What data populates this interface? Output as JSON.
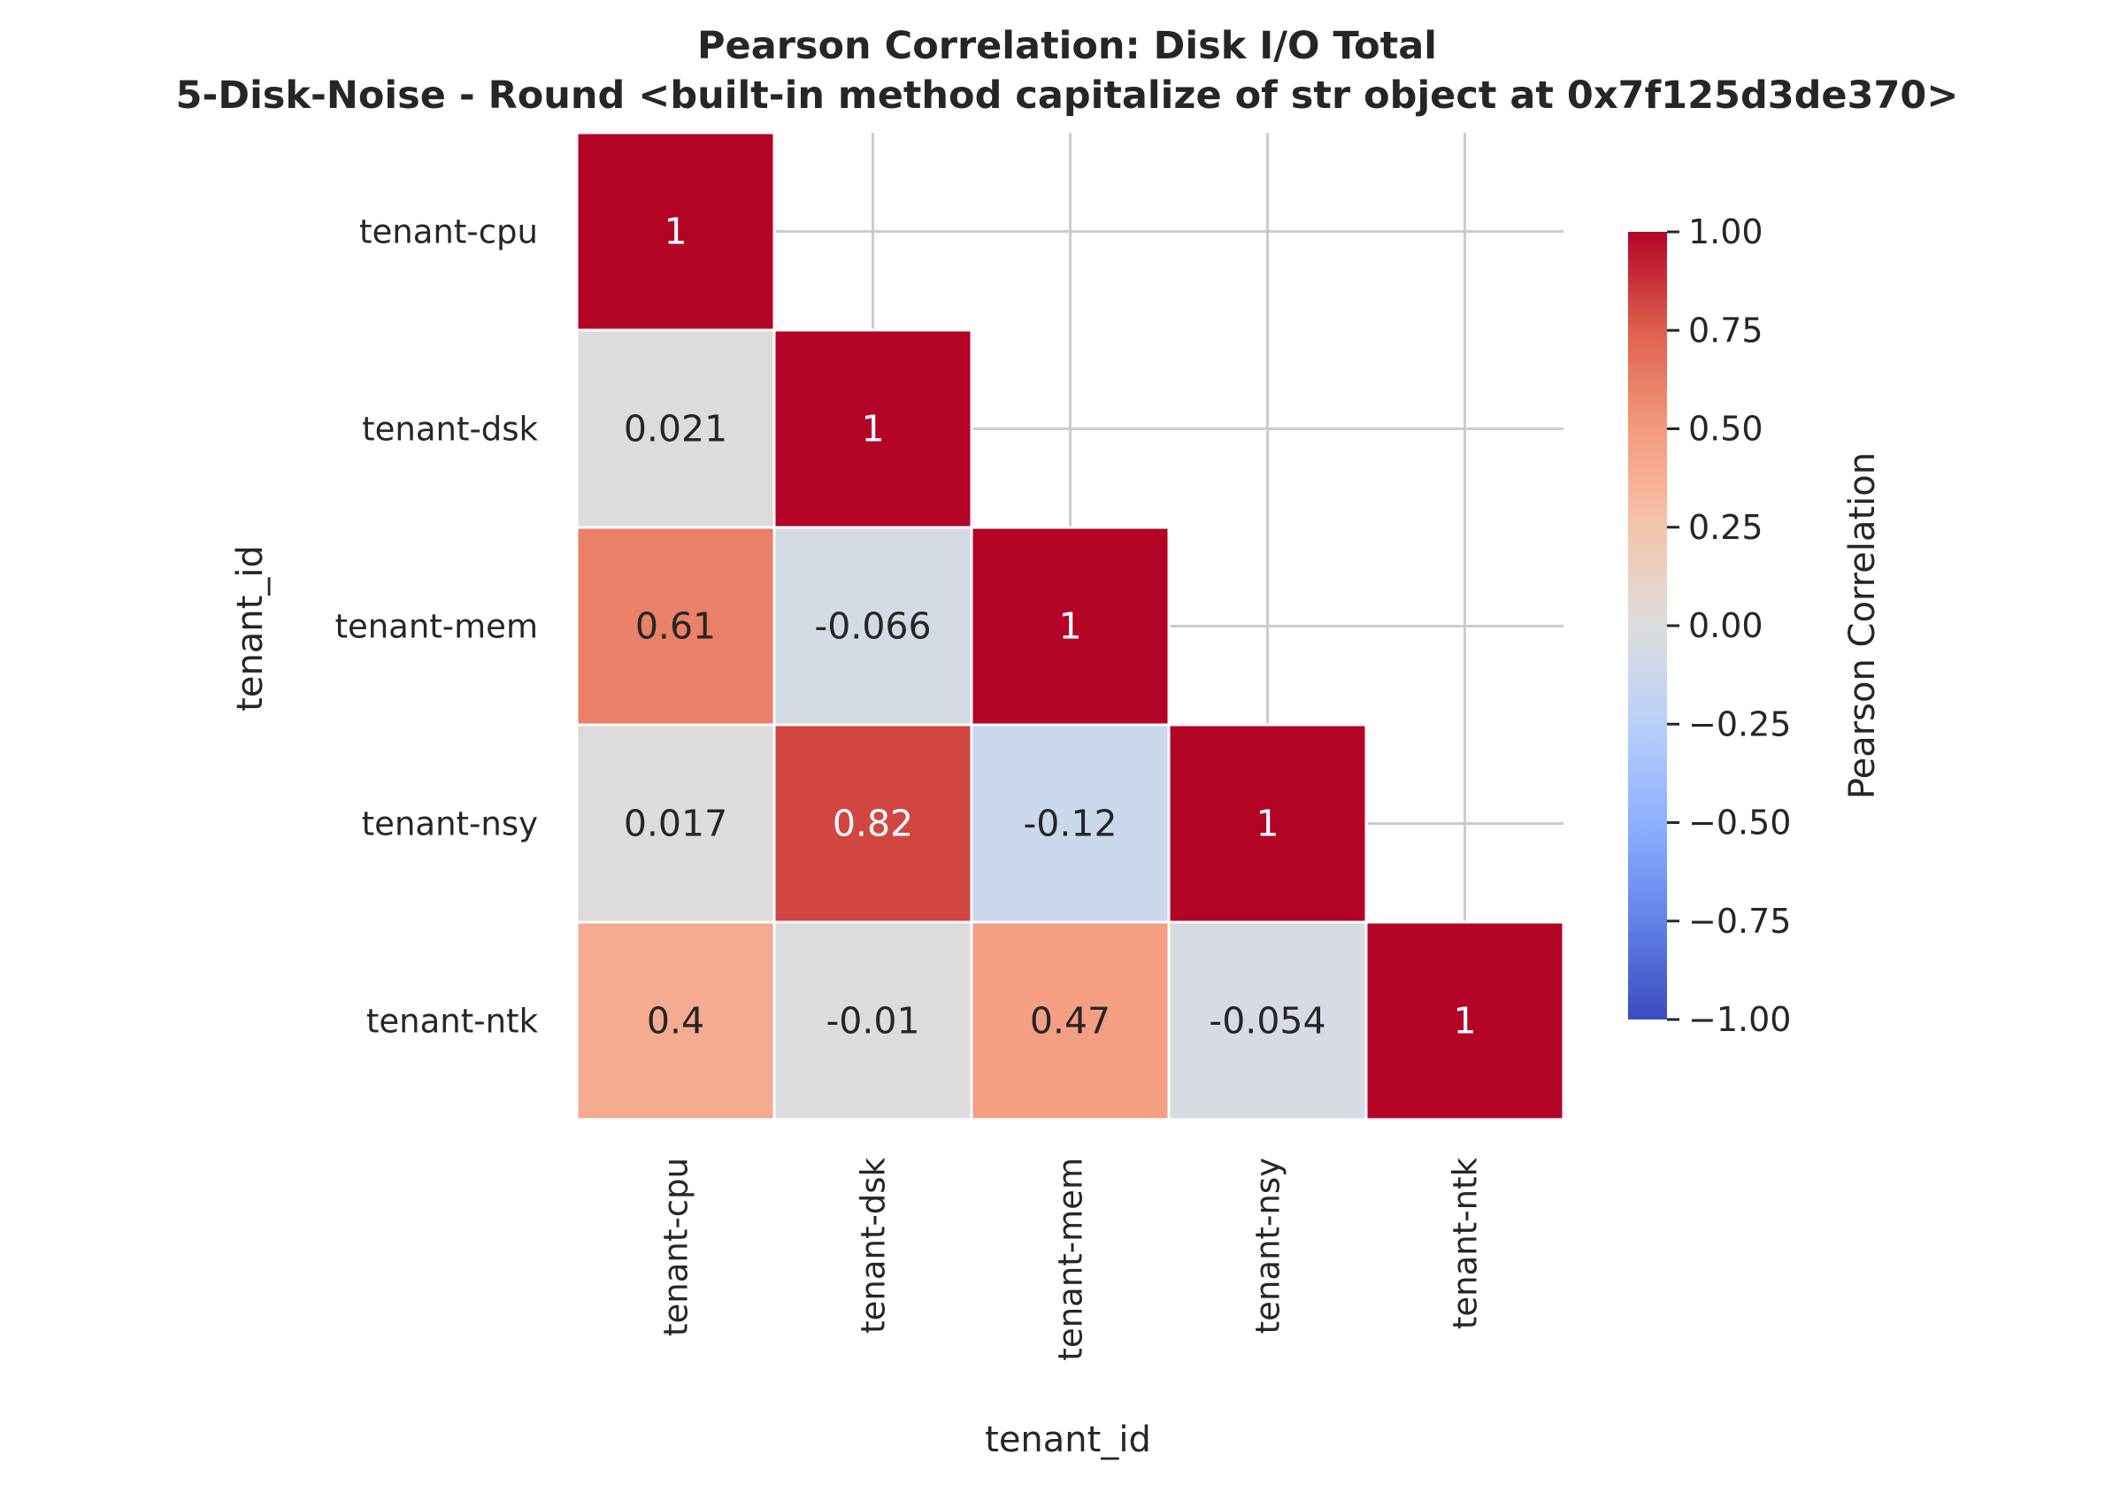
{
  "chart_data": {
    "type": "heatmap",
    "title_lines": [
      "Pearson Correlation: Disk I/O Total",
      "5-Disk-Noise - Round <built-in method capitalize of str object at 0x7f125d3de370>"
    ],
    "xlabel": "tenant_id",
    "ylabel": "tenant_id",
    "x_categories": [
      "tenant-cpu",
      "tenant-dsk",
      "tenant-mem",
      "tenant-nsy",
      "tenant-ntk"
    ],
    "y_categories": [
      "tenant-cpu",
      "tenant-dsk",
      "tenant-mem",
      "tenant-nsy",
      "tenant-ntk"
    ],
    "mask": "upper-triangle",
    "values": [
      [
        1,
        null,
        null,
        null,
        null
      ],
      [
        0.021,
        1,
        null,
        null,
        null
      ],
      [
        0.61,
        -0.066,
        1,
        null,
        null
      ],
      [
        0.017,
        0.82,
        -0.12,
        1,
        null
      ],
      [
        0.4,
        -0.01,
        0.47,
        -0.054,
        1
      ]
    ],
    "value_labels": [
      [
        "1",
        "",
        "",
        "",
        ""
      ],
      [
        "0.021",
        "1",
        "",
        "",
        ""
      ],
      [
        "0.61",
        "-0.066",
        "1",
        "",
        ""
      ],
      [
        "0.017",
        "0.82",
        "-0.12",
        "1",
        ""
      ],
      [
        "0.4",
        "-0.01",
        "0.47",
        "-0.054",
        "1"
      ]
    ],
    "colormap": "coolwarm",
    "vmin": -1,
    "vmax": 1,
    "colorbar": {
      "label": "Pearson Correlation",
      "ticks": [
        1.0,
        0.75,
        0.5,
        0.25,
        0.0,
        -0.25,
        -0.5,
        -0.75,
        -1.0
      ],
      "tick_labels": [
        "1.00",
        "0.75",
        "0.50",
        "0.25",
        "0.00",
        "−0.25",
        "−0.50",
        "−0.75",
        "−1.00"
      ]
    },
    "grid": true
  }
}
